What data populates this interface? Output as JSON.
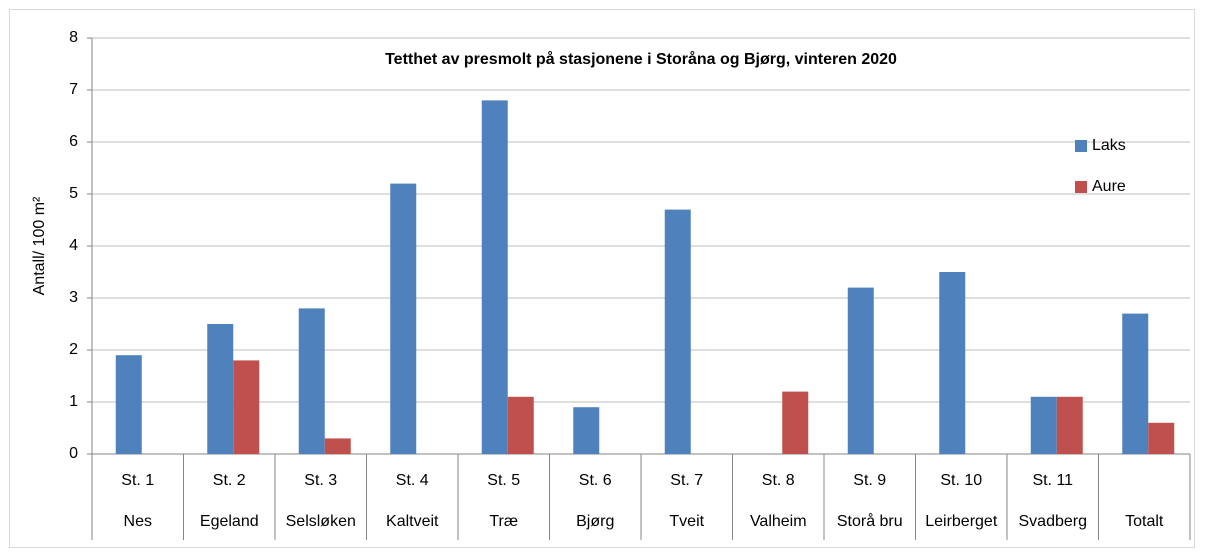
{
  "chart_data": {
    "type": "bar",
    "title": "Tetthet av presmolt på stasjonene i Storåna og Bjørg, vinteren 2020",
    "ylabel": "Antall/ 100 m²",
    "categories": [
      "St. 1",
      "St. 2",
      "St. 3",
      "St. 4",
      "St. 5",
      "St. 6",
      "St. 7",
      "St. 8",
      "St. 9",
      "St. 10",
      "St. 11",
      null
    ],
    "category_groups": [
      "Nes",
      "Egeland",
      "Selsløken",
      "Kaltveit",
      "Træ",
      "Bjørg",
      "Tveit",
      "Valheim",
      "Storå bru",
      "Leirberget",
      "Svadberg",
      "Totalt"
    ],
    "series": [
      {
        "name": "Laks",
        "color": "#4f81bd",
        "values": [
          1.9,
          2.5,
          2.8,
          5.2,
          6.8,
          0.9,
          4.7,
          0,
          3.2,
          3.5,
          1.1,
          2.7
        ]
      },
      {
        "name": "Aure",
        "color": "#c0504d",
        "values": [
          0,
          1.8,
          0.3,
          0,
          1.1,
          0,
          0,
          1.2,
          0,
          0,
          1.1,
          0.6
        ]
      }
    ],
    "ylim": [
      0,
      8
    ],
    "yticks": [
      0,
      1,
      2,
      3,
      4,
      5,
      6,
      7,
      8
    ],
    "grid": true,
    "legend": "upper right"
  }
}
